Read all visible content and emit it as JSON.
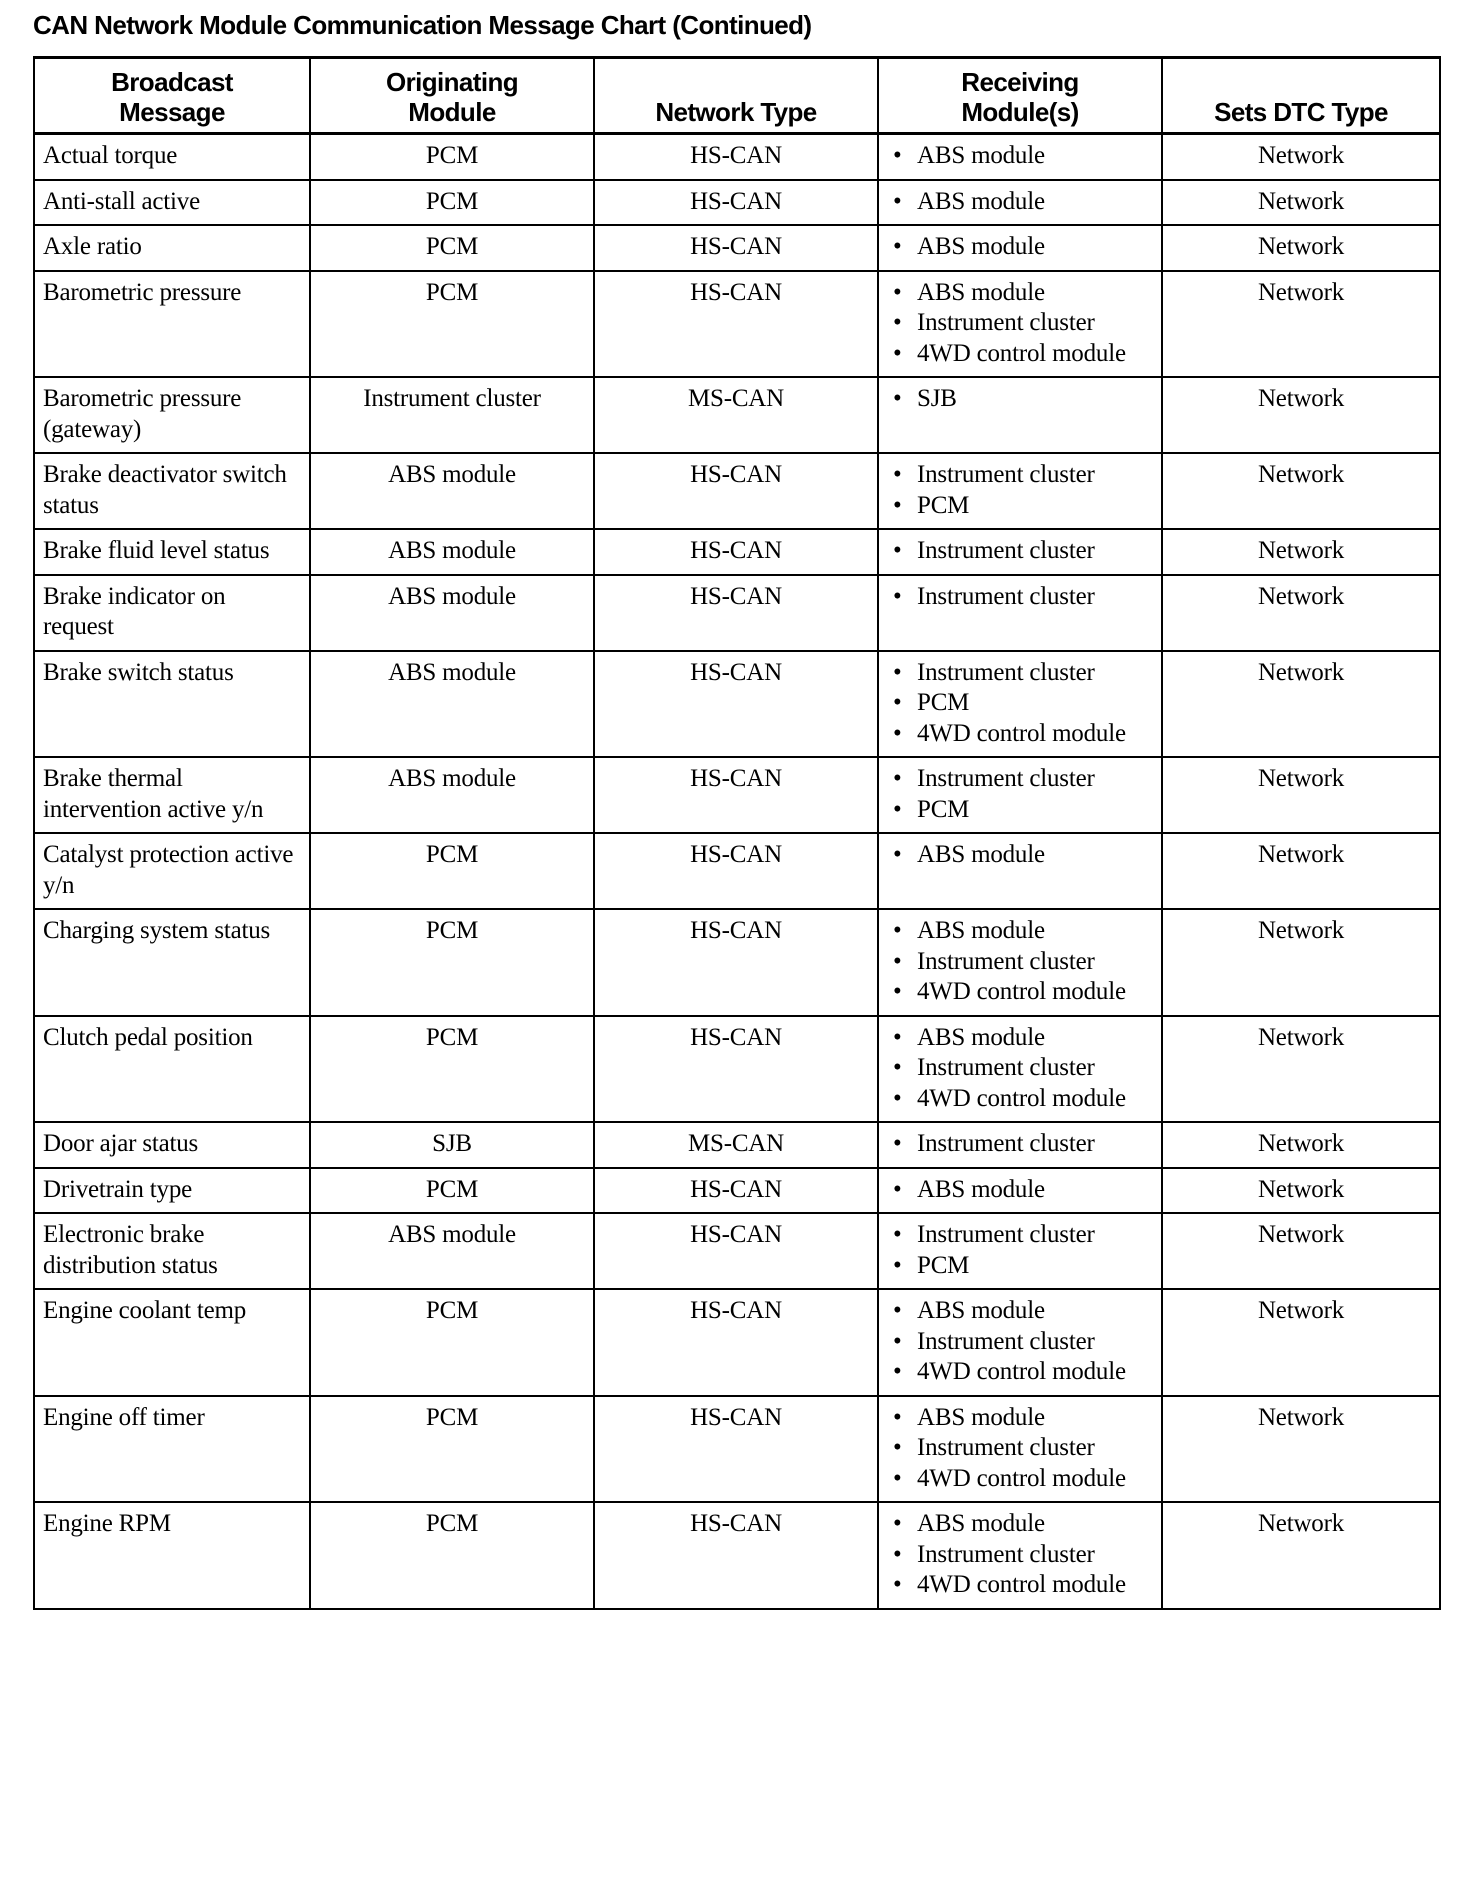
{
  "title": "CAN Network Module Communication Message Chart (Continued)",
  "columns": [
    "Broadcast Message",
    "Originating Module",
    "Network Type",
    "Receiving Module(s)",
    "Sets DTC Type"
  ],
  "rows": [
    {
      "message": "Actual torque",
      "origin": "PCM",
      "network": "HS-CAN",
      "receivers": [
        "ABS module"
      ],
      "dtc": "Network"
    },
    {
      "message": "Anti-stall active",
      "origin": "PCM",
      "network": "HS-CAN",
      "receivers": [
        "ABS module"
      ],
      "dtc": "Network"
    },
    {
      "message": "Axle ratio",
      "origin": "PCM",
      "network": "HS-CAN",
      "receivers": [
        "ABS module"
      ],
      "dtc": "Network"
    },
    {
      "message": "Barometric pressure",
      "origin": "PCM",
      "network": "HS-CAN",
      "receivers": [
        "ABS module",
        "Instrument cluster",
        "4WD control module"
      ],
      "dtc": "Network"
    },
    {
      "message": "Barometric pressure (gateway)",
      "origin": "Instrument cluster",
      "network": "MS-CAN",
      "receivers": [
        "SJB"
      ],
      "dtc": "Network"
    },
    {
      "message": "Brake deactivator switch status",
      "origin": "ABS module",
      "network": "HS-CAN",
      "receivers": [
        "Instrument cluster",
        "PCM"
      ],
      "dtc": "Network"
    },
    {
      "message": "Brake fluid level status",
      "origin": "ABS module",
      "network": "HS-CAN",
      "receivers": [
        "Instrument cluster"
      ],
      "dtc": "Network"
    },
    {
      "message": "Brake indicator on request",
      "origin": "ABS module",
      "network": "HS-CAN",
      "receivers": [
        "Instrument cluster"
      ],
      "dtc": "Network"
    },
    {
      "message": "Brake switch status",
      "origin": "ABS module",
      "network": "HS-CAN",
      "receivers": [
        "Instrument cluster",
        "PCM",
        "4WD control module"
      ],
      "dtc": "Network"
    },
    {
      "message": "Brake thermal intervention active y/n",
      "origin": "ABS module",
      "network": "HS-CAN",
      "receivers": [
        "Instrument cluster",
        "PCM"
      ],
      "dtc": "Network"
    },
    {
      "message": "Catalyst protection active y/n",
      "origin": "PCM",
      "network": "HS-CAN",
      "receivers": [
        "ABS module"
      ],
      "dtc": "Network"
    },
    {
      "message": "Charging system status",
      "origin": "PCM",
      "network": "HS-CAN",
      "receivers": [
        "ABS module",
        "Instrument cluster",
        "4WD control module"
      ],
      "dtc": "Network"
    },
    {
      "message": "Clutch pedal position",
      "origin": "PCM",
      "network": "HS-CAN",
      "receivers": [
        "ABS module",
        "Instrument cluster",
        "4WD control module"
      ],
      "dtc": "Network"
    },
    {
      "message": "Door ajar status",
      "origin": "SJB",
      "network": "MS-CAN",
      "receivers": [
        "Instrument cluster"
      ],
      "dtc": "Network"
    },
    {
      "message": "Drivetrain type",
      "origin": "PCM",
      "network": "HS-CAN",
      "receivers": [
        "ABS module"
      ],
      "dtc": "Network"
    },
    {
      "message": "Electronic brake distribution status",
      "origin": "ABS module",
      "network": "HS-CAN",
      "receivers": [
        "Instrument cluster",
        "PCM"
      ],
      "dtc": "Network"
    },
    {
      "message": "Engine coolant temp",
      "origin": "PCM",
      "network": "HS-CAN",
      "receivers": [
        "ABS module",
        "Instrument cluster",
        "4WD control module"
      ],
      "dtc": "Network"
    },
    {
      "message": "Engine off timer",
      "origin": "PCM",
      "network": "HS-CAN",
      "receivers": [
        "ABS module",
        "Instrument cluster",
        "4WD control module"
      ],
      "dtc": "Network"
    },
    {
      "message": "Engine RPM",
      "origin": "PCM",
      "network": "HS-CAN",
      "receivers": [
        "ABS module",
        "Instrument cluster",
        "4WD control module"
      ],
      "dtc": "Network"
    }
  ]
}
